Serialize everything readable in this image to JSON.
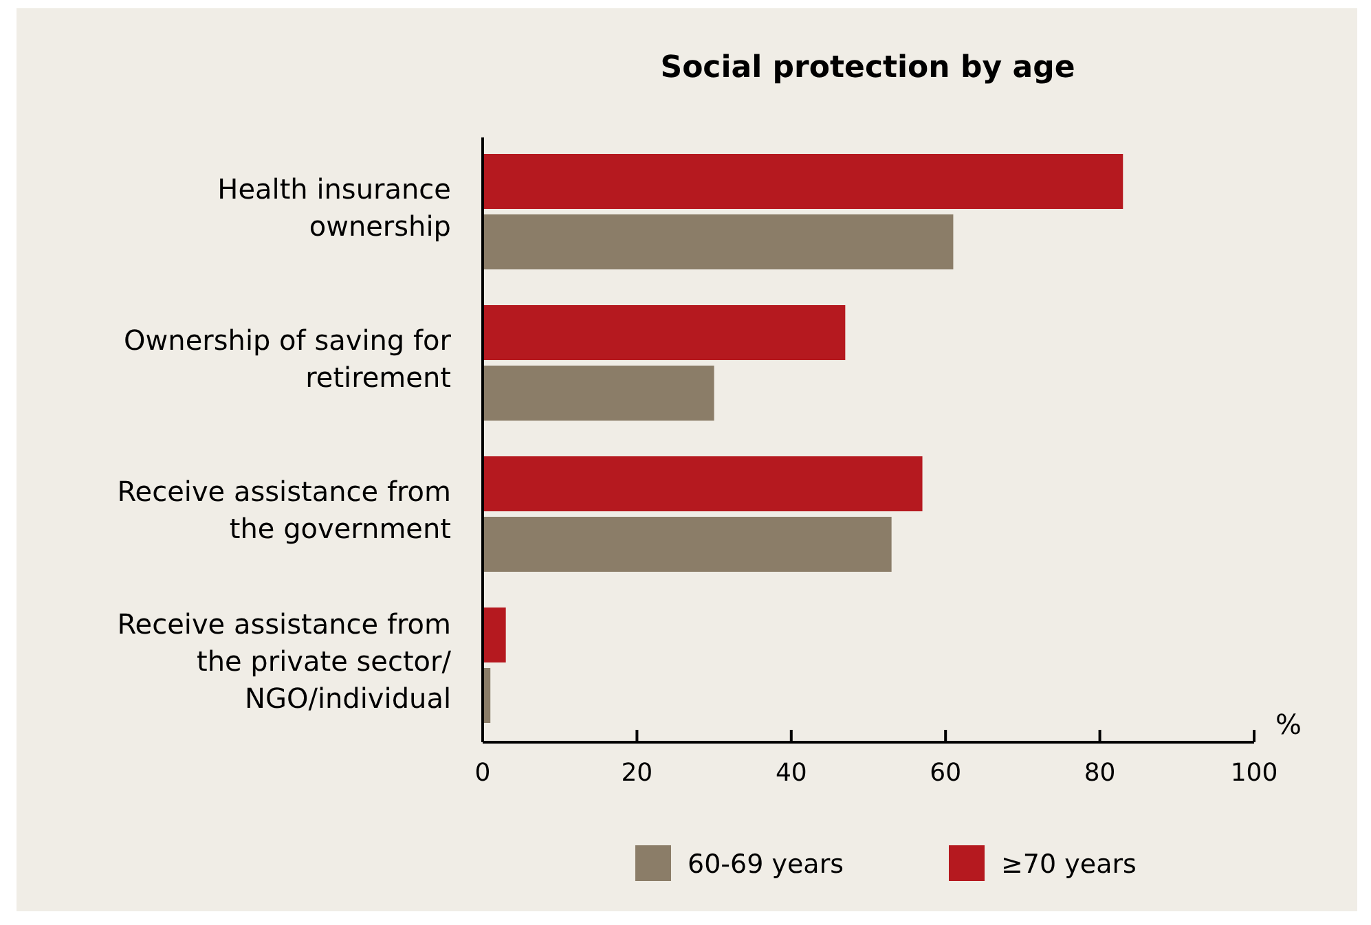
{
  "chart_data": {
    "type": "bar",
    "orientation": "horizontal",
    "title": "Social protection by age",
    "xlabel": "%",
    "categories": [
      "Health insurance\nownership",
      "Ownership of saving for\nretirement",
      "Receive assistance from\nthe government",
      "Receive assistance from\nthe private sector/\nNGO/individual"
    ],
    "series": [
      {
        "name": "60-69 years",
        "color": "#8b7d68",
        "values": [
          61,
          30,
          53,
          1
        ]
      },
      {
        "name": "≥70 years",
        "color": "#b5191f",
        "values": [
          83,
          47,
          57,
          3
        ]
      }
    ],
    "xlim": [
      0,
      100
    ],
    "xticks": [
      0,
      20,
      40,
      60,
      80,
      100
    ],
    "grid": false,
    "legend": "bottom"
  }
}
